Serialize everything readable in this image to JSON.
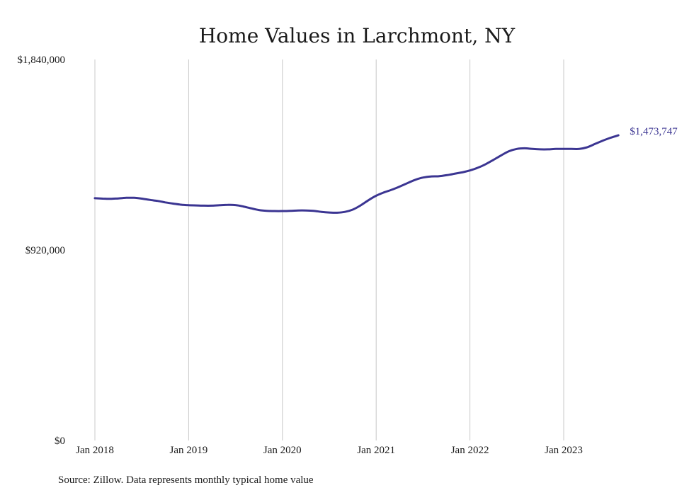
{
  "chart_data": {
    "type": "line",
    "title": "Home Values in Larchmont, NY",
    "xlabel": "",
    "ylabel": "",
    "ylim": [
      0,
      1840000
    ],
    "y_ticks": [
      "$0",
      "$920,000",
      "$1,840,000"
    ],
    "y_tick_values": [
      0,
      920000,
      1840000
    ],
    "x_ticks": [
      "Jan 2018",
      "Jan 2019",
      "Jan 2020",
      "Jan 2021",
      "Jan 2022",
      "Jan 2023"
    ],
    "x_tick_values": [
      "2018-01",
      "2019-01",
      "2020-01",
      "2021-01",
      "2022-01",
      "2023-01"
    ],
    "grid": "vertical",
    "line_color": "#3b3592",
    "end_label": "$1,473,747",
    "source": "Source: Zillow. Data represents monthly typical home value",
    "series": [
      {
        "x": [
          "2018-01",
          "2018-02",
          "2018-03",
          "2018-04",
          "2018-05",
          "2018-06",
          "2018-07",
          "2018-08",
          "2018-09",
          "2018-10",
          "2018-11",
          "2018-12",
          "2019-01",
          "2019-02",
          "2019-03",
          "2019-04",
          "2019-05",
          "2019-06",
          "2019-07",
          "2019-08",
          "2019-09",
          "2019-10",
          "2019-11",
          "2019-12",
          "2020-01",
          "2020-02",
          "2020-03",
          "2020-04",
          "2020-05",
          "2020-06",
          "2020-07",
          "2020-08",
          "2020-09",
          "2020-10",
          "2020-11",
          "2020-12",
          "2021-01",
          "2021-02",
          "2021-03",
          "2021-04",
          "2021-05",
          "2021-06",
          "2021-07",
          "2021-08",
          "2021-09",
          "2021-10",
          "2021-11",
          "2021-12",
          "2022-01",
          "2022-02",
          "2022-03",
          "2022-04",
          "2022-05",
          "2022-06",
          "2022-07",
          "2022-08",
          "2022-09",
          "2022-10",
          "2022-11",
          "2022-12",
          "2023-01",
          "2023-02",
          "2023-03",
          "2023-04",
          "2023-05",
          "2023-06",
          "2023-07",
          "2023-08"
        ],
        "values": [
          1170000,
          1168000,
          1167000,
          1169000,
          1172000,
          1172000,
          1168000,
          1162000,
          1157000,
          1150000,
          1144000,
          1139000,
          1136000,
          1135000,
          1134000,
          1134000,
          1136000,
          1138000,
          1137000,
          1130000,
          1121000,
          1113000,
          1109000,
          1108000,
          1108000,
          1109000,
          1111000,
          1111000,
          1109000,
          1104000,
          1101000,
          1100000,
          1104000,
          1115000,
          1135000,
          1160000,
          1182000,
          1198000,
          1211000,
          1226000,
          1243000,
          1259000,
          1270000,
          1275000,
          1276000,
          1281000,
          1288000,
          1295000,
          1304000,
          1317000,
          1334000,
          1355000,
          1377000,
          1397000,
          1408000,
          1411000,
          1408000,
          1406000,
          1406000,
          1408000,
          1408000,
          1408000,
          1408000,
          1416000,
          1432000,
          1448000,
          1462000,
          1473747
        ]
      }
    ]
  }
}
